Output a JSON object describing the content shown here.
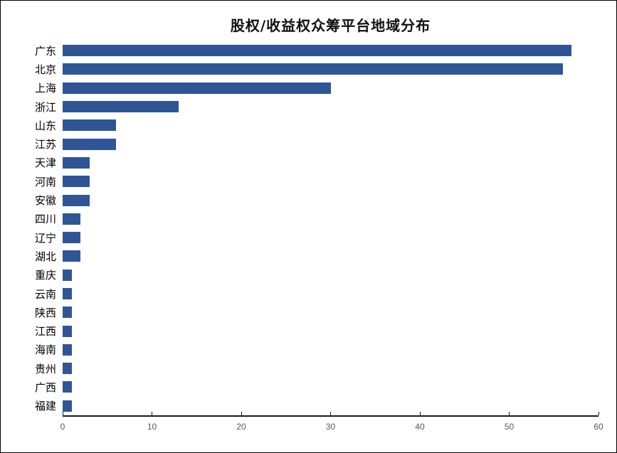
{
  "page": {
    "background": "#ffffff",
    "border_color": "#000000"
  },
  "chart_data": {
    "type": "bar",
    "orientation": "horizontal",
    "title": "股权/收益权众筹平台地域分布",
    "categories": [
      "广东",
      "北京",
      "上海",
      "浙江",
      "山东",
      "江苏",
      "天津",
      "河南",
      "安徽",
      "四川",
      "辽宁",
      "湖北",
      "重庆",
      "云南",
      "陕西",
      "江西",
      "海南",
      "贵州",
      "广西",
      "福建"
    ],
    "values": [
      57,
      56,
      30,
      13,
      6,
      6,
      3,
      3,
      3,
      2,
      2,
      2,
      1,
      1,
      1,
      1,
      1,
      1,
      1,
      1
    ],
    "xlabel": "",
    "ylabel": "",
    "xlim": [
      0,
      60
    ],
    "x_ticks": [
      0,
      10,
      20,
      30,
      40,
      50,
      60
    ],
    "bar_color": "#2F5597",
    "axis_color": "#1a1a1a",
    "tick_label_color": "#595959",
    "category_label_color": "#000000",
    "title_color": "#111111",
    "grid": false,
    "legend": false
  }
}
